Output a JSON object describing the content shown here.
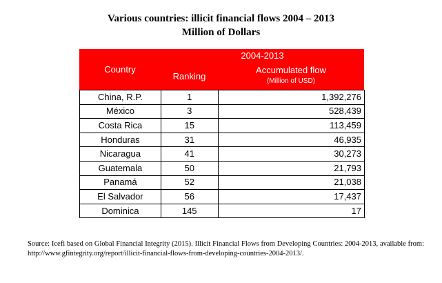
{
  "header": {
    "title": "Various countries: illicit financial flows 2004 – 2013",
    "subtitle": "Million of Dollars"
  },
  "table": {
    "columns": {
      "country": "Country",
      "ranking": "Ranking",
      "period": "2004-2013",
      "flow": "Accumulated flow",
      "unit": "(Million of USD)"
    },
    "rows": [
      [
        "China, R.P.",
        "1",
        "1,392,276"
      ],
      [
        "México",
        "3",
        "528,439"
      ],
      [
        "Costa Rica",
        "15",
        "113,459"
      ],
      [
        "Honduras",
        "31",
        "46,935"
      ],
      [
        "Nicaragua",
        "41",
        "30,273"
      ],
      [
        "Guatemala",
        "50",
        "21,793"
      ],
      [
        "Panamá",
        "52",
        "21,038"
      ],
      [
        "El Salvador",
        "56",
        "17,437"
      ],
      [
        "Dominica",
        "145",
        "17"
      ]
    ]
  },
  "source": "Source: Icefi based on Global Financial Integrity (2015). Illicit Financial Flows from Developing Countries: 2004-2013, available from: http://www.gfintegrity.org/report/illicit-financial-flows-from-developing-countries-2004-2013/."
}
